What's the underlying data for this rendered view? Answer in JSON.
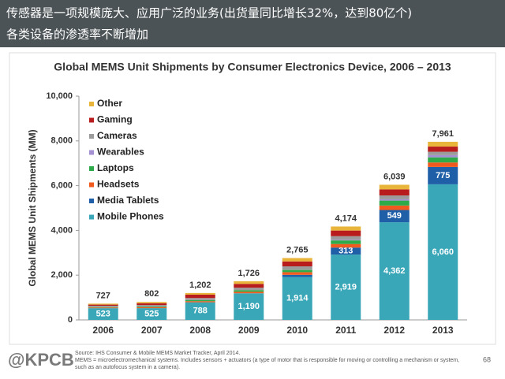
{
  "header": {
    "lines": [
      "传感器是一项规模庞大、应用广泛的业务(出货量同比增长32%，达到80亿个)",
      "各类设备的渗透率不断增加"
    ]
  },
  "chart_data": {
    "type": "stacked_bar",
    "title": "Global MEMS Unit Shipments by Consumer Electronics Device, 2006 – 2013",
    "y_label": "Global MEMS Unit Shipments (MM)",
    "categories": [
      "2006",
      "2007",
      "2008",
      "2009",
      "2010",
      "2011",
      "2012",
      "2013"
    ],
    "series": [
      {
        "name": "Mobile Phones",
        "color": "#3aa7b9",
        "values": [
          523,
          525,
          788,
          1190,
          1914,
          2919,
          4362,
          6060
        ],
        "value_labels": [
          "523",
          "525",
          "788",
          "1,190",
          "1,914",
          "2,919",
          "4,362",
          "6,060"
        ]
      },
      {
        "name": "Media Tablets",
        "color": "#1f5fa8",
        "values": [
          0,
          0,
          0,
          0,
          100,
          313,
          549,
          775
        ],
        "value_labels": [
          null,
          null,
          null,
          null,
          null,
          "313",
          "549",
          "775"
        ]
      },
      {
        "name": "Headsets",
        "color": "#f05a1e",
        "values": [
          30,
          40,
          50,
          70,
          120,
          160,
          200,
          200
        ]
      },
      {
        "name": "Laptops",
        "color": "#2eaa4a",
        "values": [
          20,
          30,
          50,
          70,
          100,
          160,
          220,
          230
        ]
      },
      {
        "name": "Wearables",
        "color": "#a590d2",
        "values": [
          0,
          0,
          0,
          0,
          10,
          30,
          60,
          100
        ]
      },
      {
        "name": "Cameras",
        "color": "#9b9b9b",
        "values": [
          60,
          70,
          90,
          110,
          150,
          160,
          170,
          150
        ]
      },
      {
        "name": "Gaming",
        "color": "#b81c1c",
        "values": [
          50,
          80,
          150,
          170,
          220,
          250,
          270,
          230
        ]
      },
      {
        "name": "Other",
        "color": "#e8b43a",
        "values": [
          44,
          57,
          74,
          116,
          151,
          182,
          208,
          216
        ]
      }
    ],
    "totals": [
      727,
      802,
      1202,
      1726,
      2765,
      4174,
      6039,
      7961
    ],
    "total_labels": [
      "727",
      "802",
      "1,202",
      "1,726",
      "2,765",
      "4,174",
      "6,039",
      "7,961"
    ],
    "ylim": [
      0,
      10000
    ],
    "yticks": [
      0,
      {
        "value": 2000,
        "label": "2,000"
      },
      {
        "value": 4000,
        "label": "4,000"
      },
      {
        "value": 6000,
        "label": "6,000"
      },
      {
        "value": 8000,
        "label": "8,000"
      },
      {
        "value": 10000,
        "label": "10,000"
      }
    ],
    "legend": "upper left"
  },
  "footer": {
    "logo": "@KPCB",
    "source": [
      "Source: IHS Consumer & Mobile MEMS Market Tracker, April 2014.",
      "MEMS = microelectromechanical systems. Includes sensors + actuators (a type of motor that is responsible for moving or controlling a mechanism or system,",
      "such as an autofocus system in a camera)."
    ],
    "page": "68"
  }
}
